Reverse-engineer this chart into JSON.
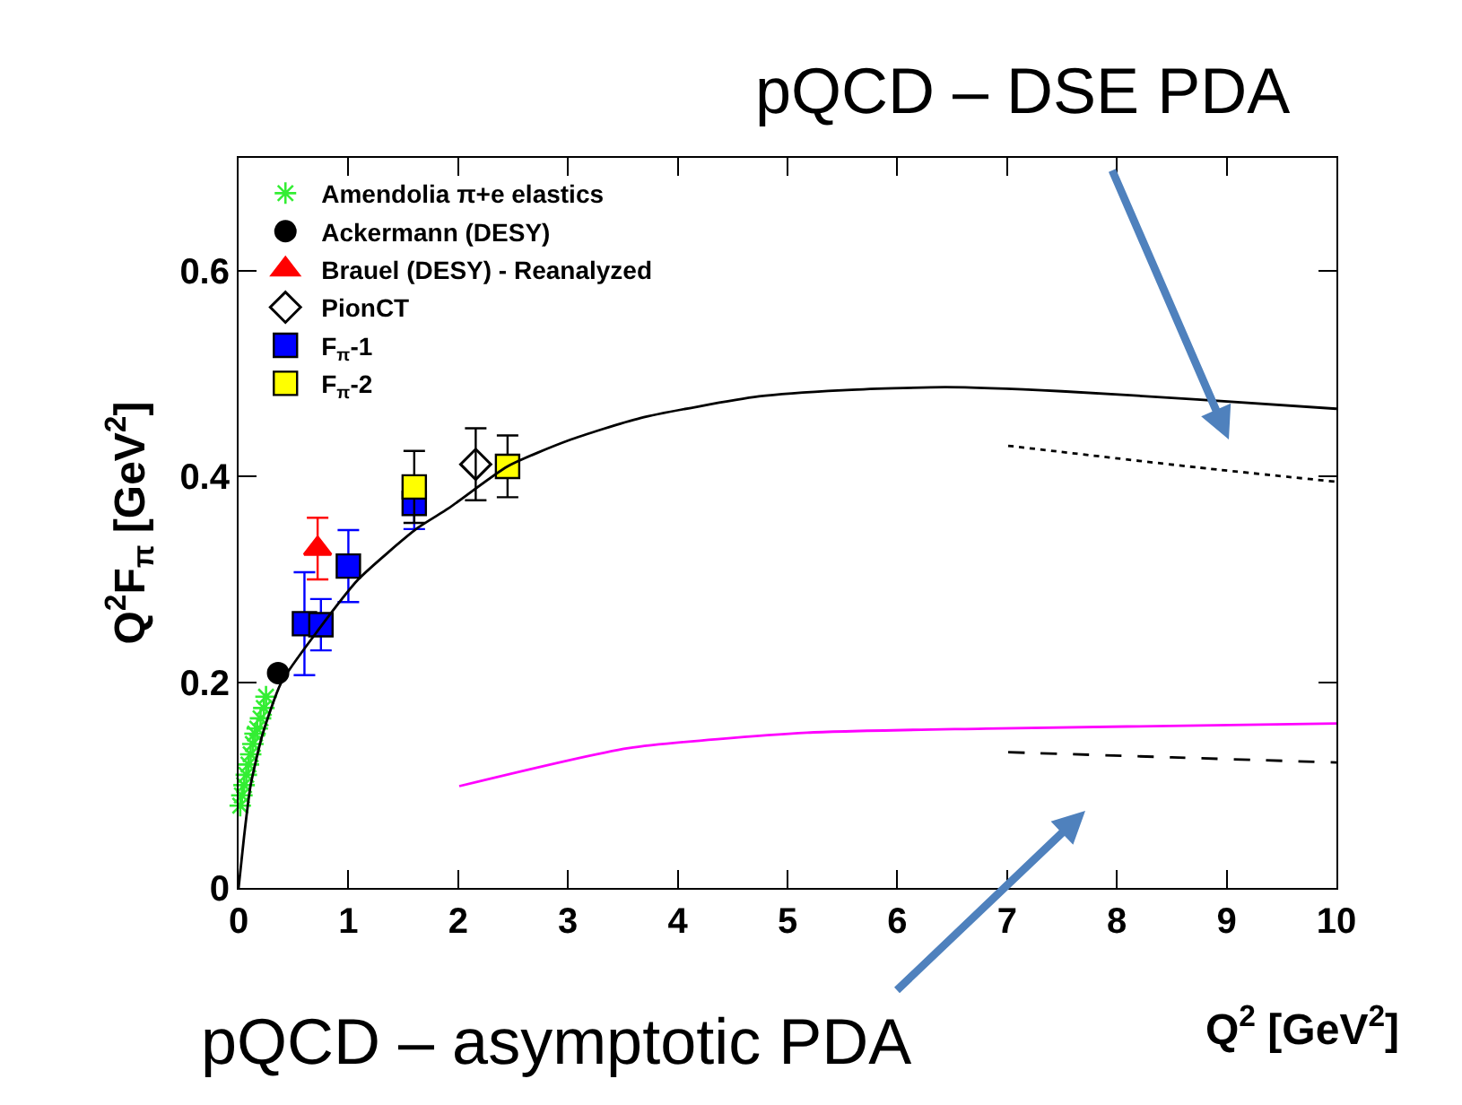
{
  "chart_data": {
    "type": "scatter",
    "xlabel": "Q$^{2}$ [GeV$^{2}$]",
    "ylabel": "Q$^{2}$F$_{π}$ [GeV$^{2}$]",
    "xlim": [
      0,
      10
    ],
    "ylim": [
      0,
      0.71
    ],
    "xticks": [
      0,
      1,
      2,
      3,
      4,
      5,
      6,
      7,
      8,
      9,
      10
    ],
    "yticks": [
      0,
      0.2,
      0.4,
      0.6
    ],
    "grid": false,
    "legend": "top left",
    "series": [
      {
        "name": "Amendolia π+e elastics",
        "color": "#33ee33",
        "marker": "cross",
        "x": [
          0.015,
          0.03,
          0.05,
          0.07,
          0.09,
          0.11,
          0.13,
          0.15,
          0.17,
          0.2,
          0.23,
          0.25
        ],
        "values": [
          0.08,
          0.09,
          0.1,
          0.11,
          0.12,
          0.13,
          0.14,
          0.15,
          0.155,
          0.165,
          0.175,
          0.186
        ]
      },
      {
        "name": "Ackermann (DESY)",
        "color": "#000000",
        "marker": "circle",
        "x": [
          0.36
        ],
        "values": [
          0.209
        ]
      },
      {
        "name": "Brauel (DESY) - Reanalyzed",
        "color": "#ff0000",
        "marker": "triangle",
        "x": [
          0.72
        ],
        "values": [
          0.33
        ],
        "errors": [
          0.03
        ]
      },
      {
        "name": "PionCT",
        "color": "#000000",
        "marker": "diamond",
        "x": [
          2.16
        ],
        "values": [
          0.412
        ],
        "errors": [
          0.035
        ]
      },
      {
        "name": "F$_{π}$-1",
        "color": "#0000ff",
        "marker": "square",
        "x": [
          0.6,
          0.75,
          1.0,
          1.6
        ],
        "values": [
          0.257,
          0.256,
          0.313,
          0.374
        ],
        "errors": [
          0.05,
          0.025,
          0.035,
          0.025
        ]
      },
      {
        "name": "F$_{π}$-2",
        "color": "#ffff00",
        "marker": "square",
        "x": [
          1.6,
          2.45
        ],
        "values": [
          0.39,
          0.41
        ],
        "errors": [
          0.035,
          0.03
        ]
      },
      {
        "type": "line",
        "color": "#000000",
        "marker": "none",
        "line_style": "solid",
        "x": [
          0,
          0.05,
          0.11,
          0.22,
          0.39,
          0.72,
          1.09,
          1.63,
          1.91,
          2.45,
          3,
          3.66,
          4.74,
          5.5,
          6.44,
          7.5,
          8.73,
          10
        ],
        "values": [
          0,
          0.05,
          0.1,
          0.15,
          0.2,
          0.25,
          0.3,
          0.35,
          0.369,
          0.41,
          0.435,
          0.457,
          0.478,
          0.484,
          0.487,
          0.483,
          0.475,
          0.466
        ]
      },
      {
        "type": "line",
        "color": "#000000",
        "marker": "none",
        "line_style": "dotted",
        "x": [
          7.01,
          8.73,
          10
        ],
        "values": [
          0.43,
          0.409,
          0.395
        ]
      },
      {
        "type": "line",
        "color": "#ff00ff",
        "marker": "none",
        "line_style": "solid",
        "x": [
          2.01,
          3.55,
          5.18,
          6.81,
          10
        ],
        "values": [
          0.099,
          0.136,
          0.151,
          0.155,
          0.16
        ]
      },
      {
        "type": "line",
        "color": "#000000",
        "marker": "none",
        "line_style": "dashed",
        "x": [
          7.01,
          8.5,
          10
        ],
        "values": [
          0.132,
          0.127,
          0.122
        ]
      }
    ],
    "annotations": [
      "pQCD – DSE PDA",
      "pQCD – asymptotic PDA"
    ]
  }
}
